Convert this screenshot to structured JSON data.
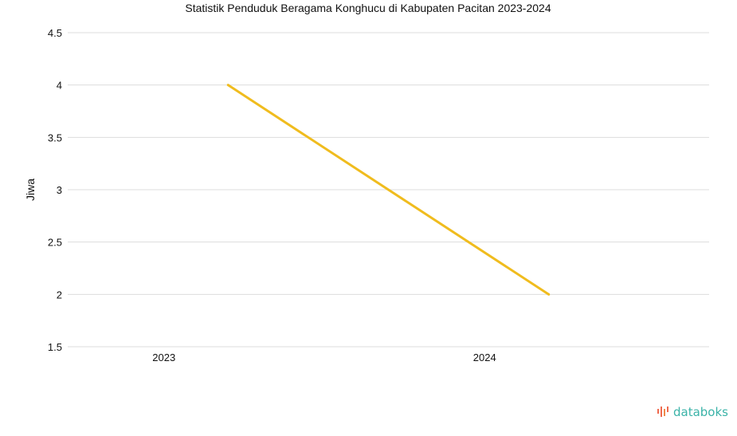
{
  "chart_data": {
    "type": "line",
    "title": "Statistik Penduduk Beragama Konghucu di Kabupaten Pacitan 2023-2024",
    "xlabel": "",
    "ylabel": "Jiwa",
    "categories": [
      "2023",
      "2024"
    ],
    "series": [
      {
        "name": "Jiwa",
        "values": [
          4,
          2
        ],
        "color": "#f0bc1e"
      }
    ],
    "ylim": [
      1.5,
      4.5
    ],
    "yticks": [
      1.5,
      2,
      2.5,
      3,
      3.5,
      4,
      4.5
    ],
    "grid": true
  },
  "brand": {
    "logo_text": "databoks",
    "color": "#3bb3a8",
    "icon_color": "#ef6a4f"
  }
}
